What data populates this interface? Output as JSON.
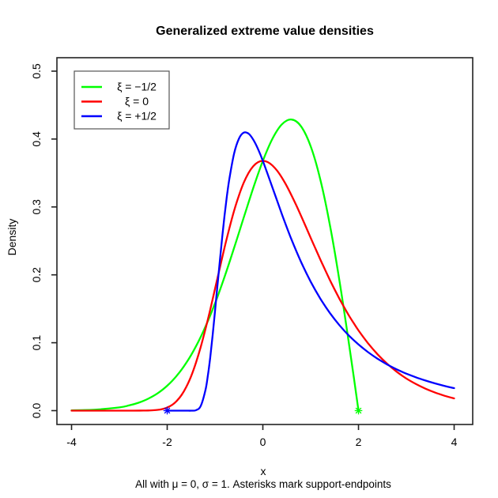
{
  "chart_data": {
    "type": "line",
    "title": "Generalized extreme value densities",
    "xlabel": "x",
    "ylabel": "Density",
    "subtitle": "All with μ = 0, σ = 1. Asterisks mark support-endpoints",
    "grid": false,
    "xlim": [
      -4.306,
      4.388
    ],
    "ylim": [
      -0.0204,
      0.5198
    ],
    "x_ticks": {
      "values": [
        -4,
        -2,
        0,
        2,
        4
      ],
      "labels": [
        "-4",
        "-2",
        "0",
        "2",
        "4"
      ]
    },
    "y_ticks": {
      "values": [
        0.0,
        0.1,
        0.2,
        0.3,
        0.4,
        0.5
      ],
      "labels": [
        "0.0",
        "0.1",
        "0.2",
        "0.3",
        "0.4",
        "0.5"
      ]
    },
    "legend": {
      "position": "topleft",
      "entries": [
        {
          "label": "ξ = −1/2",
          "color": "#00ff00"
        },
        {
          "label": "ξ = 0",
          "color": "#ff0000"
        },
        {
          "label": "ξ = +1/2",
          "color": "#0000ff"
        }
      ]
    },
    "series": [
      {
        "name": "xi = -1/2",
        "color": "#00ff00",
        "x": [
          -4,
          -3.5,
          -3,
          -2.8,
          -2.6,
          -2.4,
          -2.2,
          -2,
          -1.8,
          -1.6,
          -1.4,
          -1.2,
          -1,
          -0.8,
          -0.6,
          -0.4,
          -0.2,
          0,
          0.2,
          0.4,
          0.6,
          0.8,
          1,
          1.2,
          1.4,
          1.6,
          1.8,
          1.9,
          1.95,
          2
        ],
        "y": [
          0.0004,
          0.0014,
          0.0048,
          0.0076,
          0.0116,
          0.0174,
          0.0255,
          0.0366,
          0.0514,
          0.0705,
          0.0945,
          0.1237,
          0.1581,
          0.1972,
          0.2399,
          0.2843,
          0.328,
          0.3679,
          0.4004,
          0.4218,
          0.4288,
          0.4186,
          0.3894,
          0.3409,
          0.2742,
          0.1922,
          0.099,
          0.0499,
          0.025,
          0.0
        ]
      },
      {
        "name": "xi = 0",
        "color": "#ff0000",
        "x": [
          -4,
          -3.5,
          -3,
          -2.7,
          -2.5,
          -2.4,
          -2.3,
          -2.2,
          -2.1,
          -2,
          -1.9,
          -1.8,
          -1.7,
          -1.6,
          -1.5,
          -1.4,
          -1.3,
          -1.2,
          -1.1,
          -1,
          -0.9,
          -0.8,
          -0.7,
          -0.6,
          -0.5,
          -0.4,
          -0.3,
          -0.2,
          -0.1,
          0,
          0.1,
          0.2,
          0.3,
          0.4,
          0.5,
          0.6,
          0.7,
          0.8,
          0.9,
          1,
          1.1,
          1.2,
          1.3,
          1.4,
          1.5,
          1.6,
          1.7,
          1.8,
          1.9,
          2,
          2.2,
          2.4,
          2.6,
          2.8,
          3,
          3.2,
          3.4,
          3.6,
          3.8,
          4
        ],
        "y": [
          0.0,
          0.0,
          0.0,
          0.0,
          0.0001,
          0.0002,
          0.0005,
          0.0011,
          0.0023,
          0.0046,
          0.0083,
          0.0143,
          0.023,
          0.035,
          0.0507,
          0.0703,
          0.0936,
          0.12,
          0.1489,
          0.1794,
          0.2102,
          0.2404,
          0.2688,
          0.2946,
          0.317,
          0.3356,
          0.35,
          0.3601,
          0.366,
          0.3679,
          0.3661,
          0.3611,
          0.3532,
          0.3429,
          0.3307,
          0.317,
          0.3022,
          0.2867,
          0.2707,
          0.2546,
          0.2386,
          0.2229,
          0.2076,
          0.1927,
          0.1785,
          0.165,
          0.1522,
          0.14,
          0.1288,
          0.1182,
          0.0992,
          0.0829,
          0.069,
          0.0573,
          0.0474,
          0.0392,
          0.0323,
          0.0266,
          0.0219,
          0.018
        ]
      },
      {
        "name": "xi = +1/2",
        "color": "#0000ff",
        "x": [
          -2,
          -1.8,
          -1.6,
          -1.5,
          -1.4,
          -1.3,
          -1.2,
          -1.15,
          -1.1,
          -1.05,
          -1,
          -0.95,
          -0.9,
          -0.85,
          -0.8,
          -0.75,
          -0.7,
          -0.6,
          -0.5,
          -0.4,
          -0.3,
          -0.2,
          -0.1,
          0,
          0.2,
          0.4,
          0.6,
          0.8,
          1,
          1.2,
          1.4,
          1.6,
          1.8,
          2,
          2.2,
          2.4,
          2.6,
          2.8,
          3,
          3.2,
          3.4,
          3.6,
          3.8,
          4
        ],
        "y": [
          0.0,
          0.0,
          0.0,
          0.0,
          0.0006,
          0.0067,
          0.0302,
          0.0513,
          0.0787,
          0.111,
          0.1465,
          0.1835,
          0.2204,
          0.2554,
          0.2879,
          0.3166,
          0.3416,
          0.3789,
          0.4006,
          0.4094,
          0.408,
          0.3991,
          0.3851,
          0.3679,
          0.3288,
          0.289,
          0.2519,
          0.2188,
          0.19,
          0.1652,
          0.144,
          0.1259,
          0.1105,
          0.0974,
          0.0861,
          0.0764,
          0.068,
          0.0608,
          0.0545,
          0.0491,
          0.0443,
          0.0401,
          0.0364,
          0.0331
        ]
      }
    ],
    "markers": [
      {
        "x": -2,
        "y": 0,
        "color": "#0000ff",
        "shape": "asterisk",
        "meaning": "support endpoint of xi = +1/2"
      },
      {
        "x": 2,
        "y": 0,
        "color": "#00ff00",
        "shape": "asterisk",
        "meaning": "support endpoint of xi = -1/2"
      }
    ]
  }
}
